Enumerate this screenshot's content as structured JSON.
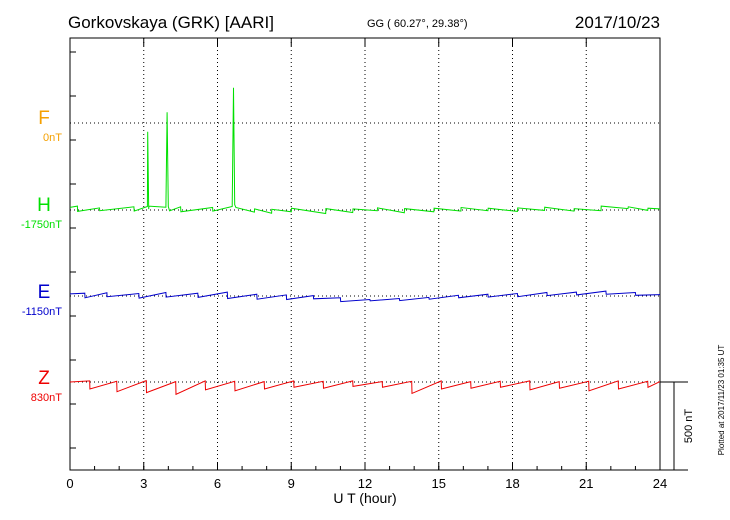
{
  "chart_data": {
    "type": "line",
    "title": "Gorkovskaya (GRK)  [AARI]",
    "coords": "GG ( 60.27°,  29.38°)",
    "date": "2017/10/23",
    "xlabel": "U T (hour)",
    "xlim": [
      0,
      24
    ],
    "xticks": [
      "0",
      "3",
      "6",
      "9",
      "12",
      "15",
      "18",
      "21",
      "24"
    ],
    "grid": true,
    "scale_label": "500 nT",
    "plotted_note": "Plotted at 2017/11/23 01:35 UT",
    "series": [
      {
        "name": "F",
        "baseline": "0nT",
        "color": "#f5a000",
        "x": [],
        "y": []
      },
      {
        "name": "H",
        "baseline": "-1750nT",
        "color": "#00e000",
        "x": [
          0,
          0.3,
          0.31,
          1.2,
          1.21,
          2.6,
          2.61,
          3.15,
          3.16,
          3.2,
          3.21,
          3.9,
          3.95,
          4.0,
          4.05,
          4.5,
          4.51,
          5.8,
          5.81,
          6.6,
          6.65,
          6.7,
          6.75,
          7.5,
          7.51,
          8.2,
          8.21,
          9.0,
          9.01,
          10.4,
          10.41,
          11.5,
          11.51,
          12.5,
          12.51,
          13.6,
          13.61,
          14.8,
          14.81,
          15.9,
          15.91,
          17.0,
          17.01,
          18.2,
          18.21,
          19.3,
          19.31,
          20.5,
          20.51,
          21.6,
          21.61,
          22.7,
          22.71,
          23.5,
          23.51,
          24
        ],
        "y": [
          15,
          22,
          -8,
          12,
          -4,
          18,
          -6,
          20,
          445,
          5,
          22,
          16,
          555,
          20,
          -5,
          18,
          -10,
          14,
          -6,
          20,
          695,
          30,
          14,
          -12,
          6,
          -18,
          4,
          -10,
          10,
          -20,
          8,
          -14,
          6,
          -4,
          12,
          -16,
          8,
          -10,
          10,
          -6,
          14,
          -4,
          10,
          -8,
          12,
          -2,
          16,
          -6,
          8,
          -4,
          22,
          8,
          18,
          -2,
          10,
          6
        ]
      },
      {
        "name": "E",
        "baseline": "-1150nT",
        "color": "#0000cc",
        "x": [
          0,
          0.6,
          0.61,
          1.5,
          1.51,
          2.8,
          2.81,
          3.9,
          3.91,
          5.2,
          5.21,
          6.4,
          6.41,
          7.6,
          7.61,
          8.8,
          8.81,
          9.9,
          9.91,
          11.0,
          11.01,
          12.2,
          12.21,
          13.4,
          13.41,
          14.6,
          14.61,
          15.8,
          15.81,
          17.0,
          17.01,
          18.2,
          18.21,
          19.4,
          19.41,
          20.6,
          20.61,
          21.8,
          21.81,
          23.0,
          23.01,
          24
        ],
        "y": [
          12,
          16,
          -10,
          18,
          -4,
          14,
          -12,
          20,
          -6,
          16,
          -8,
          22,
          -14,
          10,
          -18,
          6,
          -20,
          2,
          -16,
          -10,
          -32,
          -20,
          -28,
          -14,
          -26,
          -8,
          -18,
          4,
          -10,
          10,
          -6,
          14,
          -4,
          20,
          2,
          22,
          6,
          28,
          10,
          20,
          4,
          8
        ]
      },
      {
        "name": "Z",
        "baseline": "830nT",
        "color": "#ee0000",
        "x": [
          0,
          0.8,
          0.81,
          1.9,
          1.91,
          3.1,
          3.11,
          4.3,
          4.31,
          5.5,
          5.51,
          6.7,
          6.71,
          7.9,
          7.91,
          9.1,
          9.11,
          10.3,
          10.31,
          11.5,
          11.51,
          12.7,
          12.71,
          13.9,
          13.91,
          15.1,
          15.11,
          16.3,
          16.31,
          17.5,
          17.51,
          18.7,
          18.71,
          19.9,
          19.91,
          21.1,
          21.11,
          22.3,
          22.31,
          23.5,
          23.51,
          24
        ],
        "y": [
          0,
          6,
          -40,
          4,
          -55,
          8,
          -60,
          2,
          -70,
          6,
          -45,
          4,
          -50,
          2,
          -40,
          6,
          -30,
          4,
          -35,
          6,
          -25,
          2,
          -30,
          4,
          -65,
          6,
          -40,
          2,
          -35,
          4,
          -30,
          6,
          -45,
          2,
          -35,
          4,
          -50,
          6,
          -40,
          4,
          -30,
          2
        ]
      }
    ]
  }
}
